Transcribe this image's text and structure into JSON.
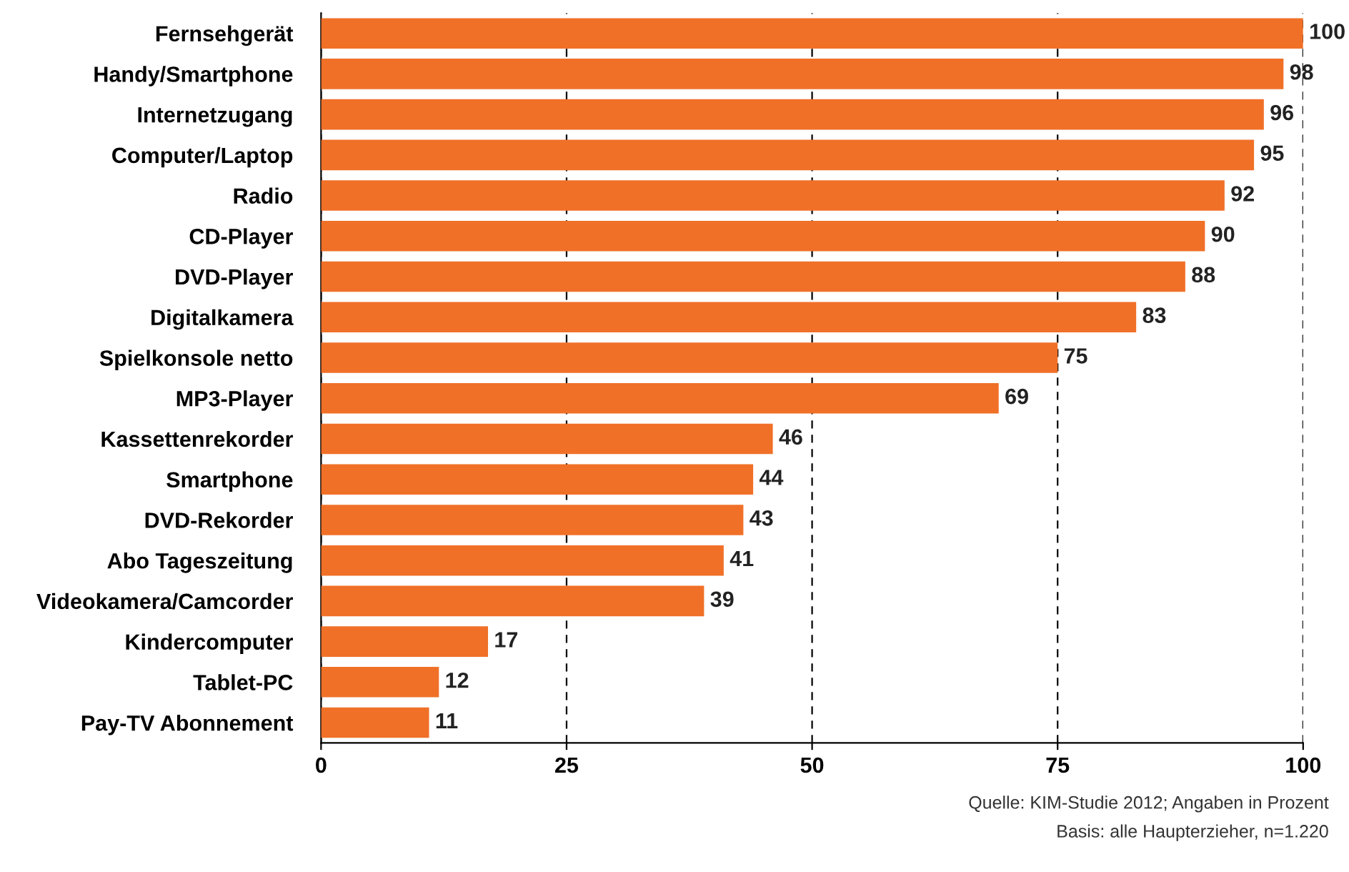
{
  "chart_data": {
    "type": "bar",
    "orientation": "horizontal",
    "categories": [
      "Fernsehgerät",
      "Handy/Smartphone",
      "Internetzugang",
      "Computer/Laptop",
      "Radio",
      "CD-Player",
      "DVD-Player",
      "Digitalkamera",
      "Spielkonsole netto",
      "MP3-Player",
      "Kassettenrekorder",
      "Smartphone",
      "DVD-Rekorder",
      "Abo Tageszeitung",
      "Videokamera/Camcorder",
      "Kindercomputer",
      "Tablet-PC",
      "Pay-TV Abonnement"
    ],
    "values": [
      100,
      98,
      96,
      95,
      92,
      90,
      88,
      83,
      75,
      69,
      46,
      44,
      43,
      41,
      39,
      17,
      12,
      11
    ],
    "color": "#f07028",
    "xlim": [
      0,
      100
    ],
    "xticks": [
      0,
      25,
      50,
      75,
      100
    ],
    "grid": "x",
    "line_style": "dashed",
    "data_labels": true,
    "annotations": [
      "Quelle: KIM-Studie 2012; Angaben in Prozent",
      "Basis: alle Haupterzieher, n=1.220"
    ]
  }
}
